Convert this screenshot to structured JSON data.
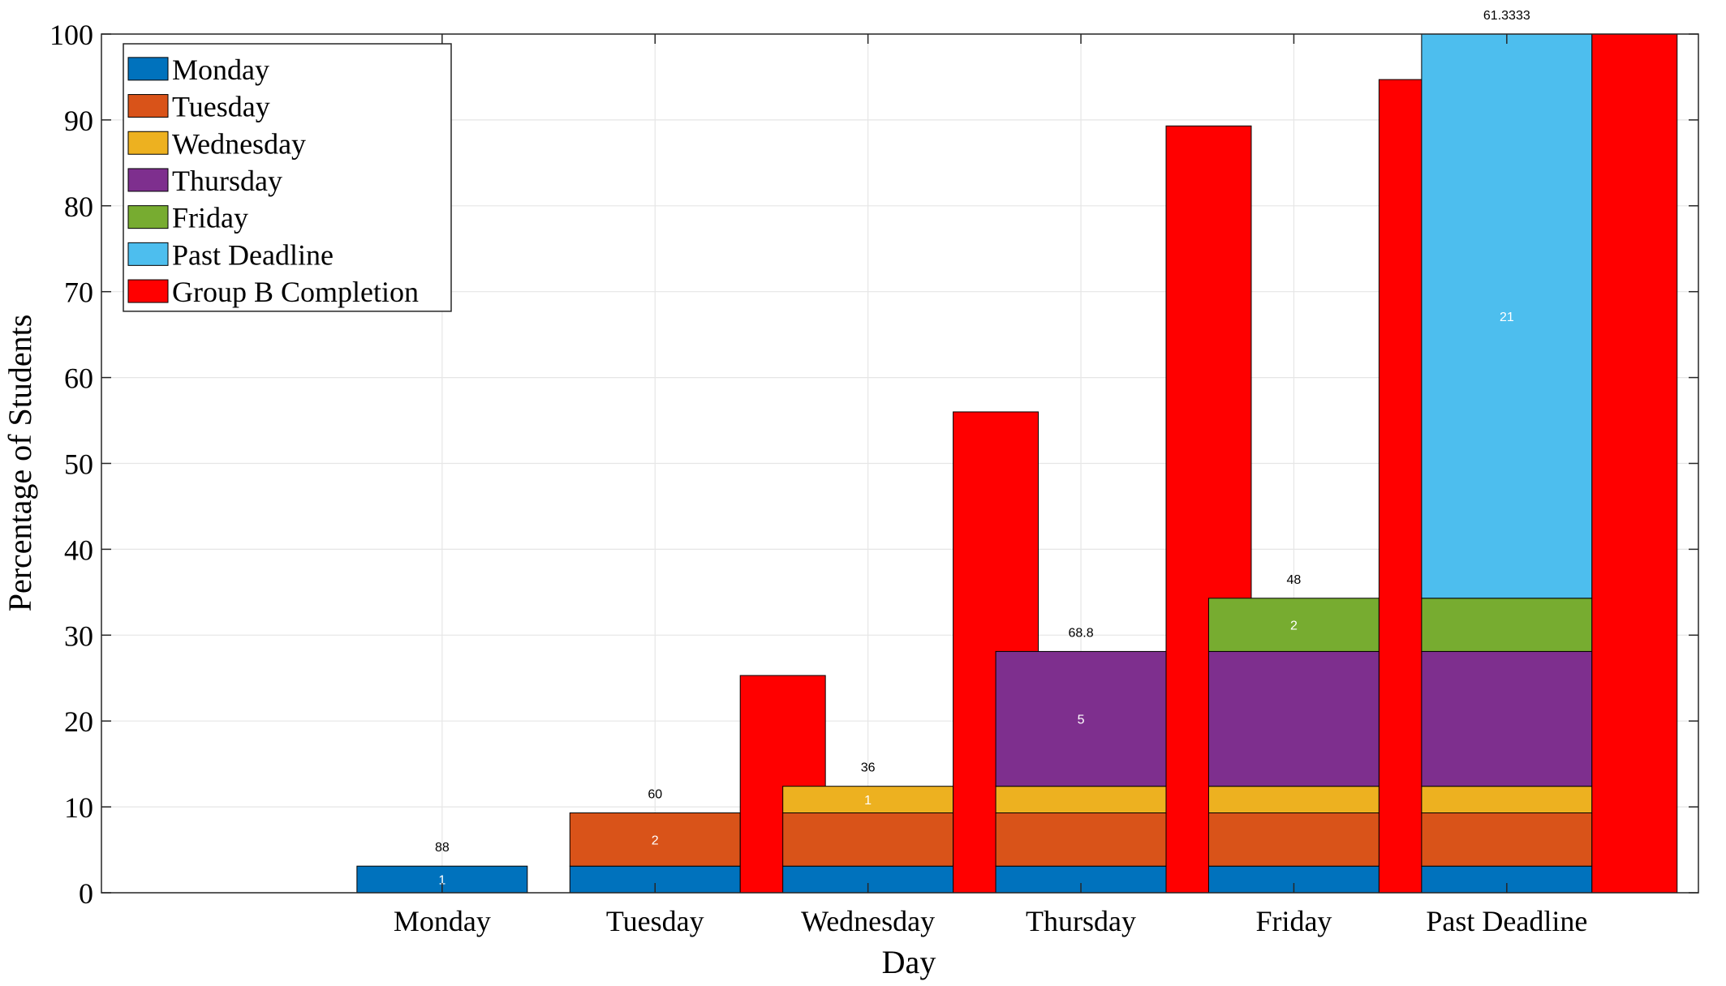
{
  "chart_data": {
    "type": "bar",
    "xlabel": "Day",
    "ylabel": "Percentage of Students",
    "ylim": [
      0,
      100
    ],
    "yticks": [
      0,
      10,
      20,
      30,
      40,
      50,
      60,
      70,
      80,
      90,
      100
    ],
    "grid": true,
    "legend_position": "top-left",
    "categories": [
      "Monday",
      "Tuesday",
      "Wednesday",
      "Thursday",
      "Friday",
      "Past Deadline"
    ],
    "stack_series": [
      {
        "name": "Monday",
        "color": "#0072BD",
        "values": [
          3.1,
          3.1,
          3.1,
          3.1,
          3.1,
          3.1
        ]
      },
      {
        "name": "Tuesday",
        "color": "#D95319",
        "values": [
          0,
          6.2,
          6.2,
          6.2,
          6.2,
          6.2
        ]
      },
      {
        "name": "Wednesday",
        "color": "#EDB120",
        "values": [
          0,
          0,
          3.1,
          3.1,
          3.1,
          3.1
        ]
      },
      {
        "name": "Thursday",
        "color": "#7E2F8E",
        "values": [
          0,
          0,
          0,
          15.7,
          15.7,
          15.7
        ]
      },
      {
        "name": "Friday",
        "color": "#77AC30",
        "values": [
          0,
          0,
          0,
          0,
          6.2,
          6.2
        ]
      },
      {
        "name": "Past Deadline",
        "color": "#4DBEEE",
        "values": [
          0,
          0,
          0,
          0,
          0,
          65.7
        ]
      }
    ],
    "comparison_series": {
      "name": "Group B Completion",
      "color": "#FF0000",
      "values": [
        0,
        25.3,
        56.0,
        89.3,
        94.7,
        100
      ]
    },
    "segment_labels": [
      {
        "category": "Monday",
        "series": "Monday",
        "text": "1"
      },
      {
        "category": "Tuesday",
        "series": "Tuesday",
        "text": "2"
      },
      {
        "category": "Wednesday",
        "series": "Wednesday",
        "text": "1"
      },
      {
        "category": "Thursday",
        "series": "Thursday",
        "text": "5"
      },
      {
        "category": "Friday",
        "series": "Friday",
        "text": "2"
      },
      {
        "category": "Past Deadline",
        "series": "Past Deadline",
        "text": "21"
      }
    ],
    "top_labels": [
      "88",
      "60",
      "36",
      "68.8",
      "48",
      "61.3333"
    ]
  }
}
